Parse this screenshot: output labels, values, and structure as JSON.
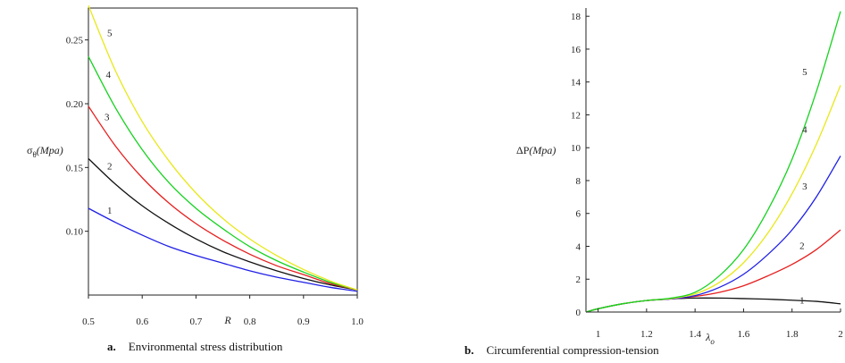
{
  "chart_data": [
    {
      "type": "line",
      "caption_letter": "a.",
      "caption_text": "Environmental stress distribution",
      "ylabel_symbol": "σ",
      "ylabel_sub": "θ",
      "ylabel_unit": "(Mpa)",
      "xlabel": "R",
      "xlim": [
        0.5,
        1.0
      ],
      "ylim": [
        0.05,
        0.275
      ],
      "xticks": [
        "0.5",
        "0.6",
        "0.7",
        "0.8",
        "0.9",
        "1.0"
      ],
      "yticks": [
        "0.10",
        "0.15",
        "0.20",
        "0.25"
      ],
      "x": [
        0.5,
        0.55,
        0.6,
        0.65,
        0.7,
        0.75,
        0.8,
        0.85,
        0.9,
        0.95,
        1.0
      ],
      "series": [
        {
          "name": "1",
          "color": "#1f1fe6",
          "values": [
            0.118,
            0.107,
            0.097,
            0.088,
            0.081,
            0.075,
            0.069,
            0.064,
            0.06,
            0.056,
            0.053
          ]
        },
        {
          "name": "2",
          "color": "#111111",
          "values": [
            0.157,
            0.137,
            0.12,
            0.106,
            0.094,
            0.084,
            0.076,
            0.069,
            0.063,
            0.058,
            0.054
          ]
        },
        {
          "name": "3",
          "color": "#e61f1f",
          "values": [
            0.198,
            0.167,
            0.142,
            0.122,
            0.106,
            0.093,
            0.082,
            0.073,
            0.066,
            0.059,
            0.054
          ]
        },
        {
          "name": "4",
          "color": "#16d21f",
          "values": [
            0.237,
            0.197,
            0.164,
            0.138,
            0.118,
            0.102,
            0.088,
            0.077,
            0.068,
            0.06,
            0.054
          ]
        },
        {
          "name": "5",
          "color": "#e8e81a",
          "values": [
            0.277,
            0.226,
            0.186,
            0.155,
            0.13,
            0.11,
            0.094,
            0.081,
            0.07,
            0.061,
            0.054
          ]
        }
      ]
    },
    {
      "type": "line",
      "caption_letter": "b.",
      "caption_text": "Circumferential compression-tension",
      "ylabel_symbol": "ΔP",
      "ylabel_unit": "(Mpa)",
      "xlabel_symbol": "λ",
      "xlabel_sub": "o",
      "xlim": [
        0.95,
        2.0
      ],
      "ylim": [
        0,
        18.5
      ],
      "xticks": [
        "1",
        "1.2",
        "1.4",
        "1.6",
        "1.8",
        "2"
      ],
      "yticks": [
        "0",
        "2",
        "4",
        "6",
        "8",
        "10",
        "12",
        "14",
        "16",
        "18"
      ],
      "x": [
        0.95,
        1.0,
        1.1,
        1.2,
        1.3,
        1.4,
        1.5,
        1.6,
        1.7,
        1.8,
        1.9,
        2.0
      ],
      "series": [
        {
          "name": "1",
          "color": "#111111",
          "values": [
            0.0,
            0.2,
            0.5,
            0.7,
            0.8,
            0.85,
            0.85,
            0.82,
            0.78,
            0.72,
            0.65,
            0.5
          ]
        },
        {
          "name": "2",
          "color": "#e61f1f",
          "values": [
            0.0,
            0.2,
            0.5,
            0.7,
            0.8,
            0.95,
            1.2,
            1.6,
            2.2,
            2.9,
            3.8,
            5.0
          ]
        },
        {
          "name": "3",
          "color": "#1f1fe6",
          "values": [
            0.0,
            0.2,
            0.5,
            0.7,
            0.8,
            1.0,
            1.5,
            2.3,
            3.5,
            5.0,
            7.0,
            9.5
          ]
        },
        {
          "name": "4",
          "color": "#e8e81a",
          "values": [
            0.0,
            0.2,
            0.5,
            0.7,
            0.82,
            1.1,
            1.8,
            3.0,
            4.8,
            7.2,
            10.2,
            13.8
          ]
        },
        {
          "name": "5",
          "color": "#16d21f",
          "values": [
            0.0,
            0.2,
            0.5,
            0.7,
            0.85,
            1.2,
            2.2,
            3.8,
            6.2,
            9.3,
            13.4,
            18.3
          ]
        }
      ]
    }
  ]
}
